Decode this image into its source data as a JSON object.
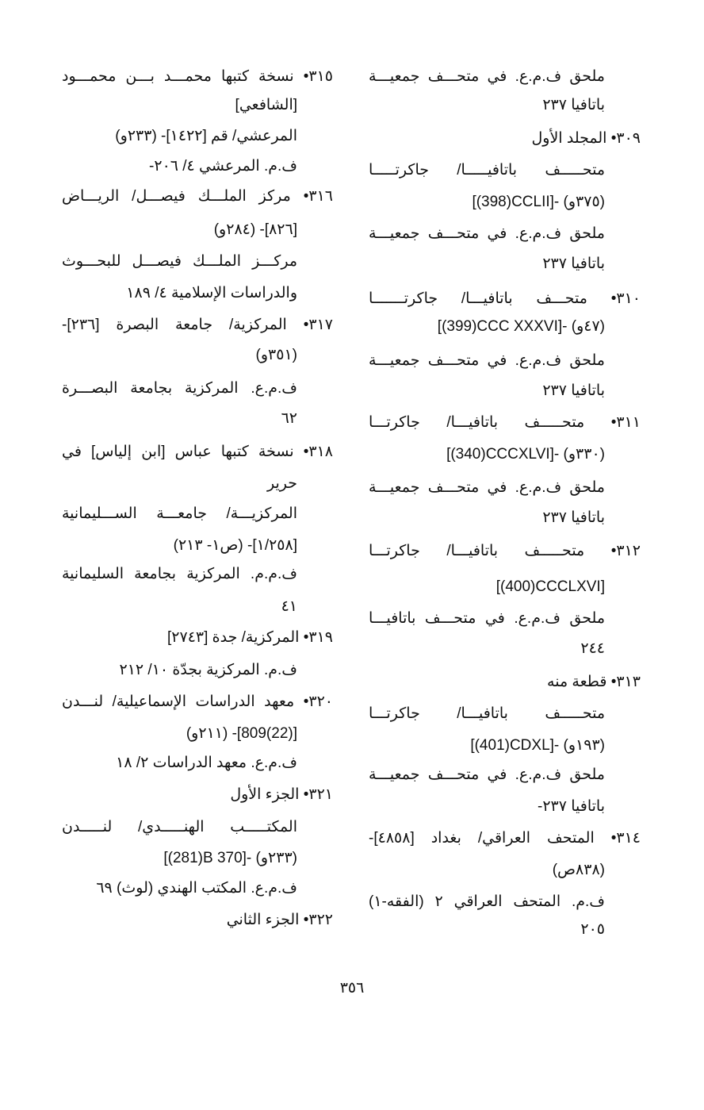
{
  "right_column": {
    "lines": [
      "ملحق ف.م.ع. في متحـــف جمعيـــة",
      "باتافيا ٢٣٧",
      "٣٠٩• المجلد الأول",
      "متحـــــف باتافيـــــا/ جاكرتـــــا",
      "[(398)CCLII]- (٣٧٥و)",
      "ملحق ف.م.ع. في متحـــف جمعيـــة",
      "باتافيا ٢٣٧",
      "٣١٠• متحـــف باتافيـــا/ جاكرتـــــــا",
      "[(399)CCC XXXVI]- (٤٧و)",
      "ملحق ف.م.ع. في متحـــف جمعيـــة",
      "باتافيا ٢٣٧",
      "٣١١• متحـــــف باتافيـــا/ جاكرتـــا",
      "[(340)CCCXLVI]- (٣٣٠و)",
      "ملحق ف.م.ع. في متحـــف جمعيـــة",
      "باتافيا ٢٣٧",
      "٣١٢• متحـــــف باتافيـــا/ جاكرتـــا",
      "[(400)CCCLXVI]",
      "ملحق ف.م.ع. في متحـــف باتافيـــا",
      "٢٤٤",
      "٣١٣• قطعة منه",
      "متحـــــف باتافيـــا/ جاكرتـــا",
      "[(401)CDXL]- (١٩٣و)",
      "ملحق ف.م.ع. في متحـــف جمعيـــة",
      "باتافيا ٢٣٧-",
      "٣١٤• المتحف العراقي/ بغداد [٤٨٥٨]-",
      "(٨٣٨ص)",
      "ف.م. المتحف العراقي ٢ (الفقه-١)",
      "٢٠٥"
    ]
  },
  "left_column": {
    "lines": [
      "٣١٥• نسخة كتبها محمـــد بـــن محمـــود",
      "[الشافعي]",
      "المرعشي/ قم [١٤٢٢]- (٢٣٣و)",
      "ف.م. المرعشي ٤/ ٢٠٦-",
      "٣١٦• مركز الملـــك فيصـــل/ الريـــاض",
      "[٨٢٦]- (٢٨٤و)",
      "مركـــز الملـــك فيصـــل للبحـــوث",
      "والدراسات الإسلامية ٤/ ١٨٩",
      "٣١٧• المركزية/ جامعة البصرة [٢٣٦]-",
      "(٣٥١و)",
      "ف.م.ع. المركزية بجامعة البصـــرة",
      "٦٢",
      "٣١٨• نسخة كتبها عباس [ابن إلياس] في",
      "حرير",
      "المركزيـــة/ جامعـــة الســـليمانية",
      "[١/٢٥٨]- (ص١- ٢١٣)",
      "ف.م.م. المركزية بجامعة السليمانية",
      "٤١",
      "٣١٩• المركزية/ جدة [٢٧٤٣]",
      "ف.م. المركزية بجدّة ١٠/ ٢١٢",
      "٣٢٠• معهد الدراسات الإسماعيلية/ لنـــدن",
      "[(22)809]- (٢١١و)",
      "ف.م.ع. معهد الدراسات ٢/ ١٨",
      "٣٢١• الجزء الأول",
      "المكتـــــب الهنـــــدي/ لنـــــدن",
      "[(281)B 370]- (٢٣٣و)",
      "ف.م.ع. المكتب الهندي (لوث) ٦٩",
      "٣٢٢• الجزء الثاني"
    ]
  },
  "footer": {
    "page_number": "٣٥٦"
  }
}
